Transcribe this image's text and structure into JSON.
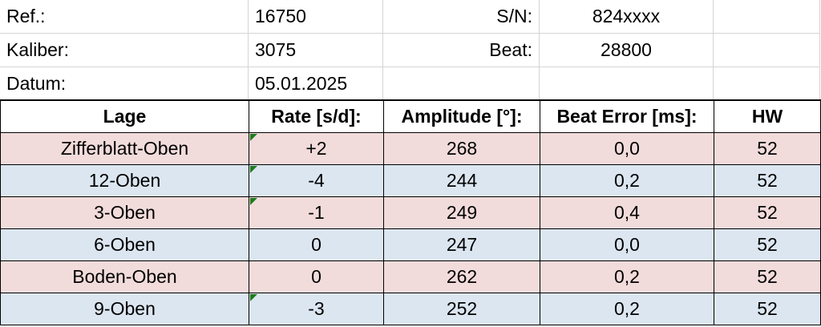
{
  "info": {
    "rows": [
      [
        "Ref.:",
        "16750",
        "S/N:",
        "824xxxx"
      ],
      [
        "Kaliber:",
        "3075",
        "Beat:",
        "28800"
      ],
      [
        "Datum:",
        "05.01.2025"
      ]
    ]
  },
  "table": {
    "header": [
      "Lage",
      "Rate [s/d]:",
      "Amplitude [°]:",
      "Beat Error [ms]:",
      "HW"
    ],
    "rows": [
      [
        "Zifferblatt-Oben",
        "+2",
        "268",
        "0,0",
        "52"
      ],
      [
        "12-Oben",
        "-4",
        "244",
        "0,2",
        "52"
      ],
      [
        "3-Oben",
        "-1",
        "249",
        "0,4",
        "52"
      ],
      [
        "6-Oben",
        "0",
        "247",
        "0,0",
        "52"
      ],
      [
        "Boden-Oben",
        "0",
        "262",
        "0,2",
        "52"
      ],
      [
        "9-Oben",
        "-3",
        "252",
        "0,2",
        "52"
      ]
    ]
  }
}
